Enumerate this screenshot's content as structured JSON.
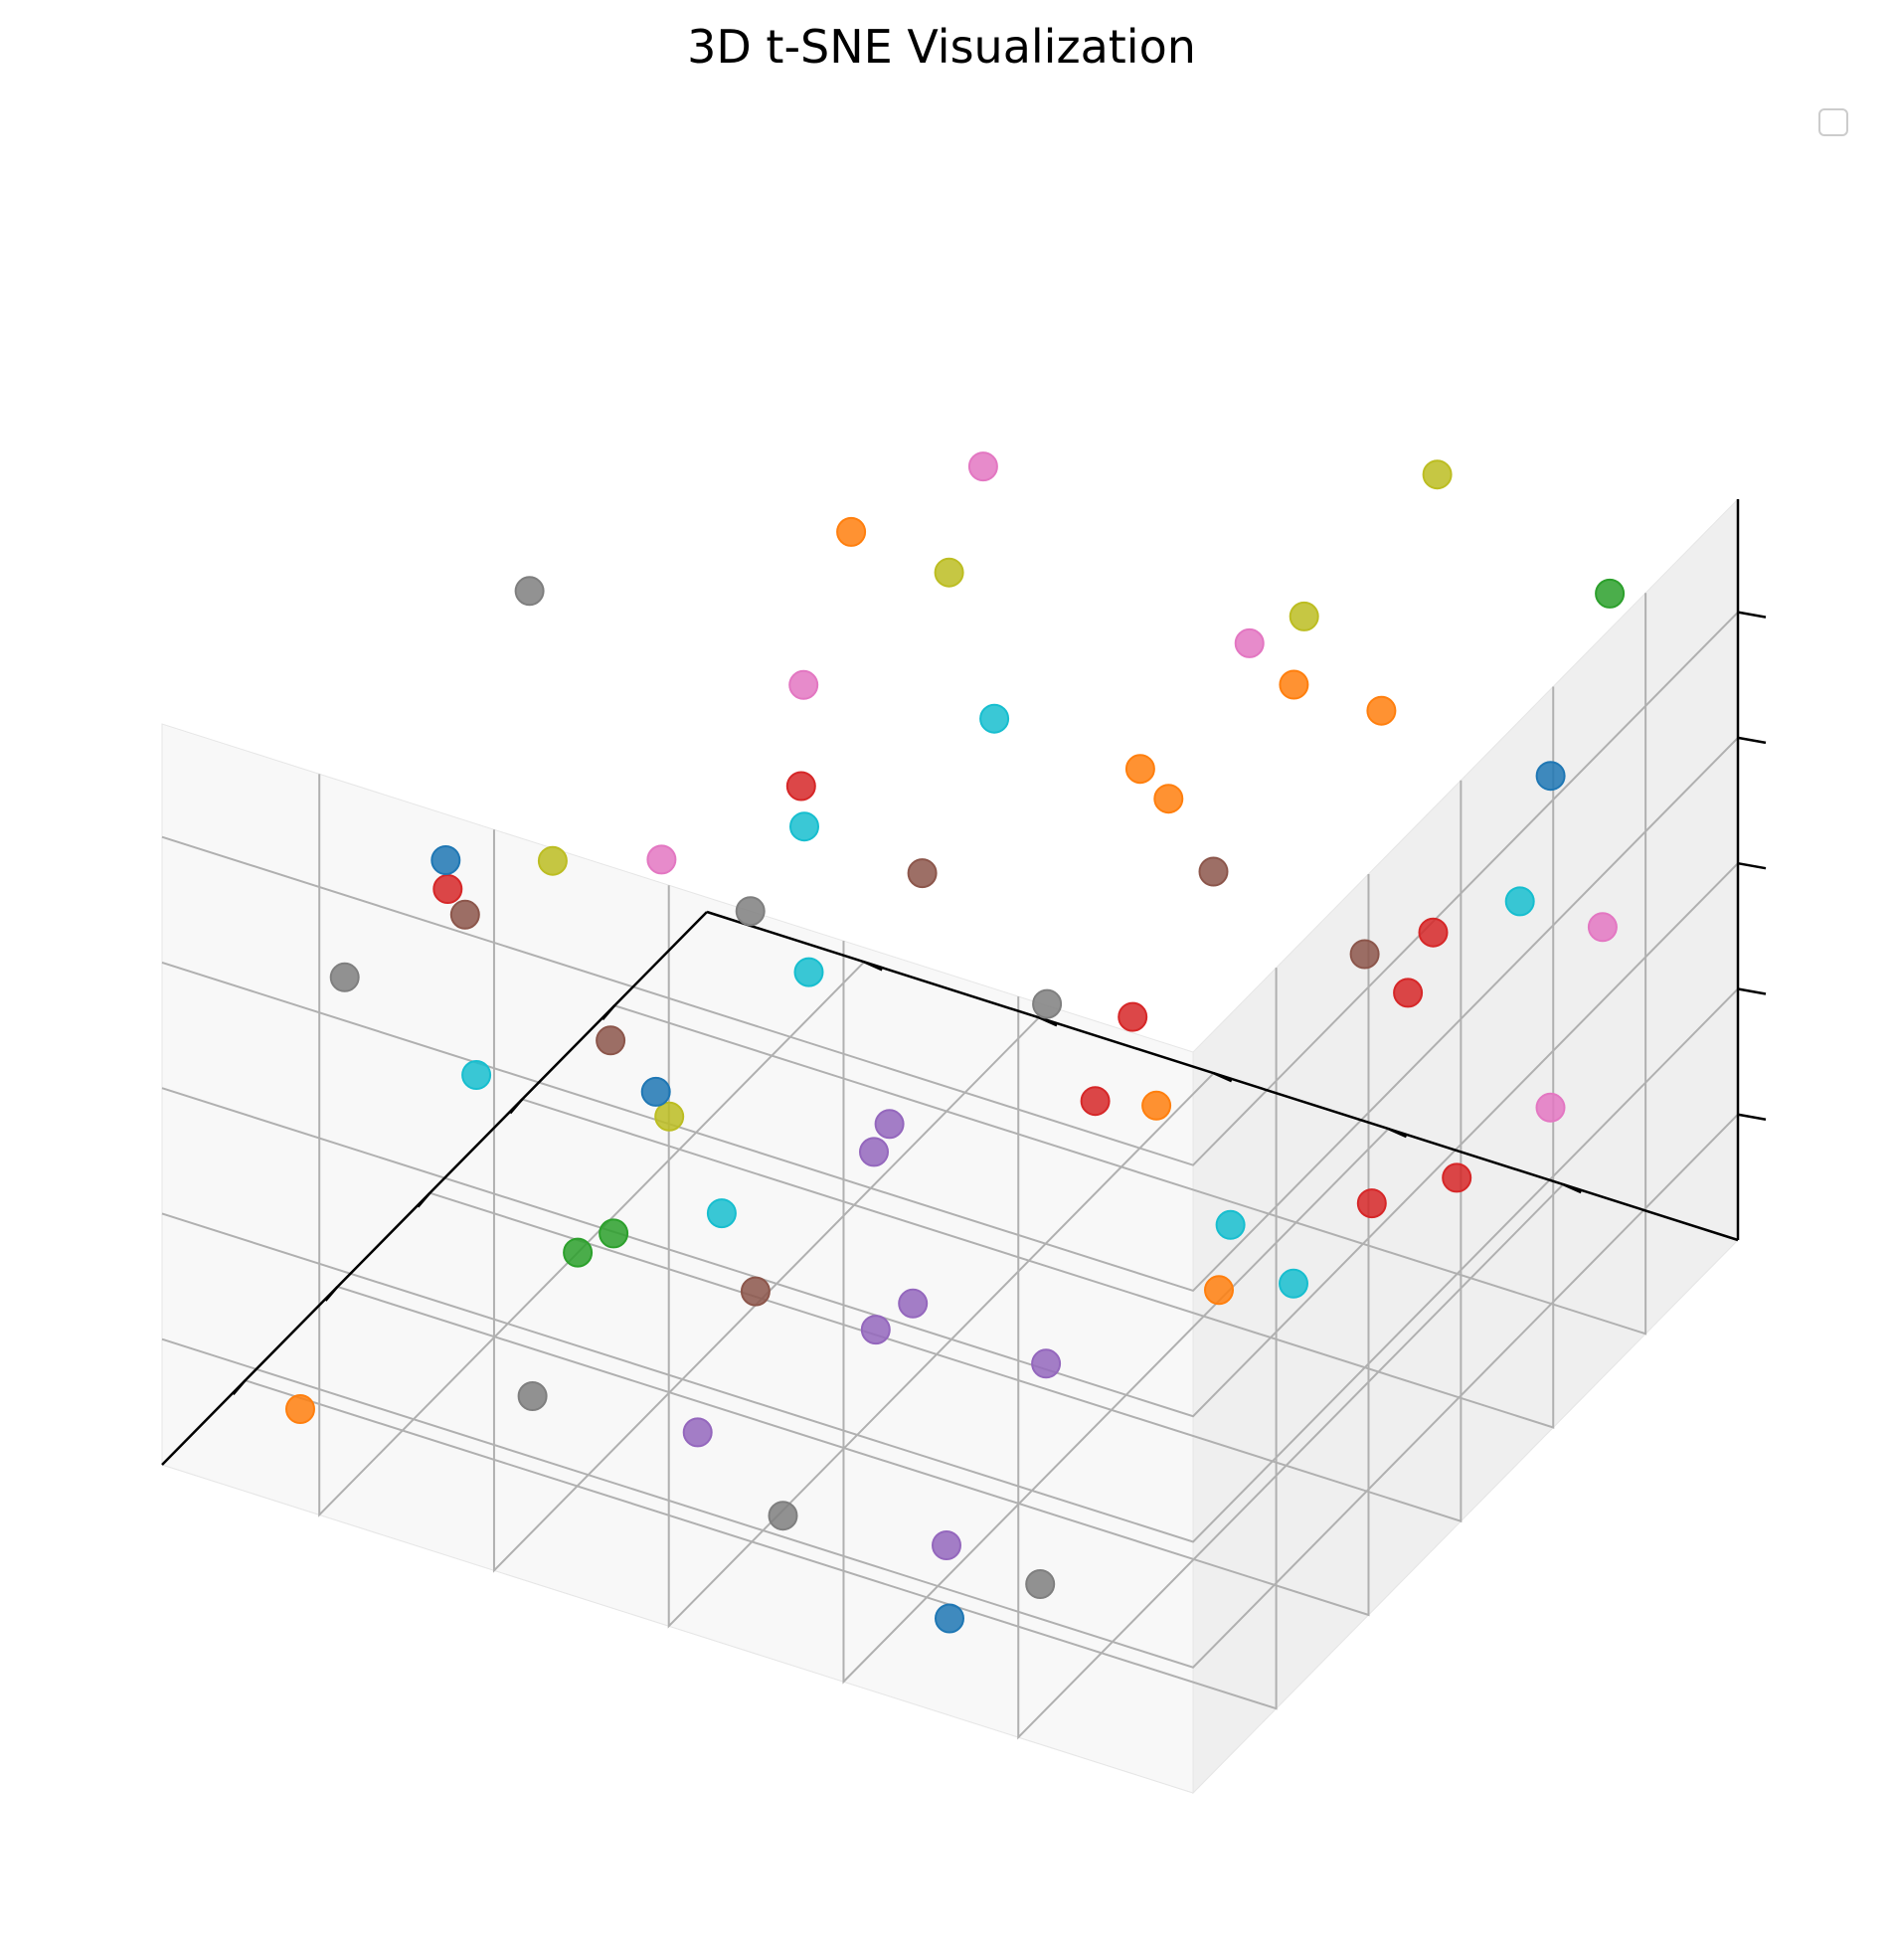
{
  "chart_data": {
    "type": "scatter",
    "projection": "3d",
    "title": "3D t-SNE Visualization",
    "xlabel": "",
    "ylabel": "",
    "zlabel": "",
    "tick_labels_shown": false,
    "grid": true,
    "legend": {
      "placement": "top-right",
      "entries": []
    },
    "xlim": [
      0,
      10
    ],
    "ylim": [
      0,
      10
    ],
    "zlim": [
      0,
      10
    ],
    "colors": {
      "blue": "#1f77b4",
      "orange": "#ff7f0e",
      "green": "#2ca02c",
      "red": "#d62728",
      "purple": "#9467bd",
      "brown": "#8c564b",
      "pink": "#e377c2",
      "gray": "#7f7f7f",
      "olive": "#bcbd22",
      "cyan": "#17becf"
    },
    "points": [
      {
        "x": 0.58,
        "y": 1.51,
        "z": 6.03,
        "color": "blue"
      },
      {
        "x": 6.44,
        "y": 9.13,
        "z": 5.89,
        "color": "blue"
      },
      {
        "x": 8.26,
        "y": 6.13,
        "z": 5.45,
        "color": "blue"
      },
      {
        "x": 9.93,
        "y": 2.4,
        "z": 1.24,
        "color": "blue"
      },
      {
        "x": 1.98,
        "y": 3.26,
        "z": 7.53,
        "color": "orange"
      },
      {
        "x": 1.7,
        "y": 2.56,
        "z": 7.28,
        "color": "orange"
      },
      {
        "x": 2.68,
        "y": 4.38,
        "z": 6.42,
        "color": "orange"
      },
      {
        "x": 2.56,
        "y": 4.17,
        "z": 6.02,
        "color": "orange"
      },
      {
        "x": 2.5,
        "y": 7.28,
        "z": 8.2,
        "color": "orange"
      },
      {
        "x": 9.5,
        "y": 0.62,
        "z": 8.63,
        "color": "orange"
      },
      {
        "x": 3.3,
        "y": 3.29,
        "z": 0.33,
        "color": "orange"
      },
      {
        "x": 9.28,
        "y": 9.04,
        "z": 0.64,
        "color": "orange"
      },
      {
        "x": 6.01,
        "y": 7.73,
        "z": 1.15,
        "color": "green"
      },
      {
        "x": 6.95,
        "y": 7.58,
        "z": 1.66,
        "color": "green"
      },
      {
        "x": 0.8,
        "y": 0.82,
        "z": 8.96,
        "color": "green"
      },
      {
        "x": 1.62,
        "y": 2.1,
        "z": 4.43,
        "color": "red"
      },
      {
        "x": 4.25,
        "y": 6.84,
        "z": 6.27,
        "color": "red"
      },
      {
        "x": 2.7,
        "y": 1.3,
        "z": 2.28,
        "color": "red"
      },
      {
        "x": 3.18,
        "y": 1.87,
        "z": 2.04,
        "color": "red"
      },
      {
        "x": 4.58,
        "y": 0.78,
        "z": 6.41,
        "color": "red"
      },
      {
        "x": 5.38,
        "y": 3.39,
        "z": 4.39,
        "color": "red"
      },
      {
        "x": 8.41,
        "y": 8.07,
        "z": 7.44,
        "color": "red"
      },
      {
        "x": 7.76,
        "y": 1.77,
        "z": 8.02,
        "color": "red"
      },
      {
        "x": 8.23,
        "y": 3.88,
        "z": 5.99,
        "color": "purple"
      },
      {
        "x": 9.16,
        "y": 1.87,
        "z": 4.34,
        "color": "purple"
      },
      {
        "x": 6.06,
        "y": 4.8,
        "z": 1.54,
        "color": "purple"
      },
      {
        "x": 6.93,
        "y": 4.7,
        "z": 1.88,
        "color": "purple"
      },
      {
        "x": 5.96,
        "y": 5.23,
        "z": 3.32,
        "color": "purple"
      },
      {
        "x": 8.11,
        "y": 3.39,
        "z": 0.43,
        "color": "purple"
      },
      {
        "x": 7.36,
        "y": 6.2,
        "z": 0.15,
        "color": "purple"
      },
      {
        "x": 4.1,
        "y": 2.92,
        "z": 6.74,
        "color": "brown"
      },
      {
        "x": 6.14,
        "y": 7.69,
        "z": 3.87,
        "color": "brown"
      },
      {
        "x": 5.92,
        "y": 6.4,
        "z": 0.89,
        "color": "brown"
      },
      {
        "x": 3.86,
        "y": 1.58,
        "z": 6.04,
        "color": "brown"
      },
      {
        "x": 4.45,
        "y": 5.56,
        "z": 5.81,
        "color": "brown"
      },
      {
        "x": 8.81,
        "y": 7.69,
        "z": 7.56,
        "color": "brown"
      },
      {
        "x": 0.63,
        "y": 0.98,
        "z": 4.26,
        "color": "pink"
      },
      {
        "x": 3.96,
        "y": 6.97,
        "z": 7.36,
        "color": "pink"
      },
      {
        "x": 2.38,
        "y": 3.48,
        "z": 8.29,
        "color": "pink"
      },
      {
        "x": 2.48,
        "y": 6.01,
        "z": 9.63,
        "color": "pink"
      },
      {
        "x": 2.72,
        "y": 0.38,
        "z": 3.65,
        "color": "pink"
      },
      {
        "x": 6.68,
        "y": 6.91,
        "z": 7.06,
        "color": "pink"
      },
      {
        "x": 4.58,
        "y": 9.3,
        "z": 8.06,
        "color": "gray"
      },
      {
        "x": 8.71,
        "y": 8.91,
        "z": 6.1,
        "color": "gray"
      },
      {
        "x": 8.84,
        "y": 7.02,
        "z": 1.38,
        "color": "gray"
      },
      {
        "x": 9.03,
        "y": 4.49,
        "z": 1.03,
        "color": "gray"
      },
      {
        "x": 1.44,
        "y": 5.94,
        "z": 1.63,
        "color": "gray"
      },
      {
        "x": 9.08,
        "y": 4.78,
        "z": 9.1,
        "color": "gray"
      },
      {
        "x": 8.53,
        "y": 2.26,
        "z": 0.72,
        "color": "gray"
      },
      {
        "x": 3.23,
        "y": 2.5,
        "z": 9.72,
        "color": "olive"
      },
      {
        "x": 1.61,
        "y": 6.8,
        "z": 7.2,
        "color": "olive"
      },
      {
        "x": 7.94,
        "y": 7.3,
        "z": 7.81,
        "color": "olive"
      },
      {
        "x": 0.56,
        "y": 2.62,
        "z": 9.59,
        "color": "olive"
      },
      {
        "x": 8.96,
        "y": 5.63,
        "z": 5.86,
        "color": "olive"
      },
      {
        "x": 6.01,
        "y": 9.06,
        "z": 2.7,
        "color": "cyan"
      },
      {
        "x": 3.75,
        "y": 2.94,
        "z": 1.7,
        "color": "cyan"
      },
      {
        "x": 5.61,
        "y": 6.09,
        "z": 7.07,
        "color": "cyan"
      },
      {
        "x": 1.67,
        "y": 6.33,
        "z": 5.48,
        "color": "cyan"
      },
      {
        "x": 2.81,
        "y": 0.63,
        "z": 6.39,
        "color": "cyan"
      },
      {
        "x": 5.33,
        "y": 7.04,
        "z": 1.22,
        "color": "cyan"
      },
      {
        "x": 4.28,
        "y": 6.75,
        "z": 3.82,
        "color": "cyan"
      },
      {
        "x": 3.71,
        "y": 2.35,
        "z": 1.14,
        "color": "cyan"
      }
    ]
  }
}
